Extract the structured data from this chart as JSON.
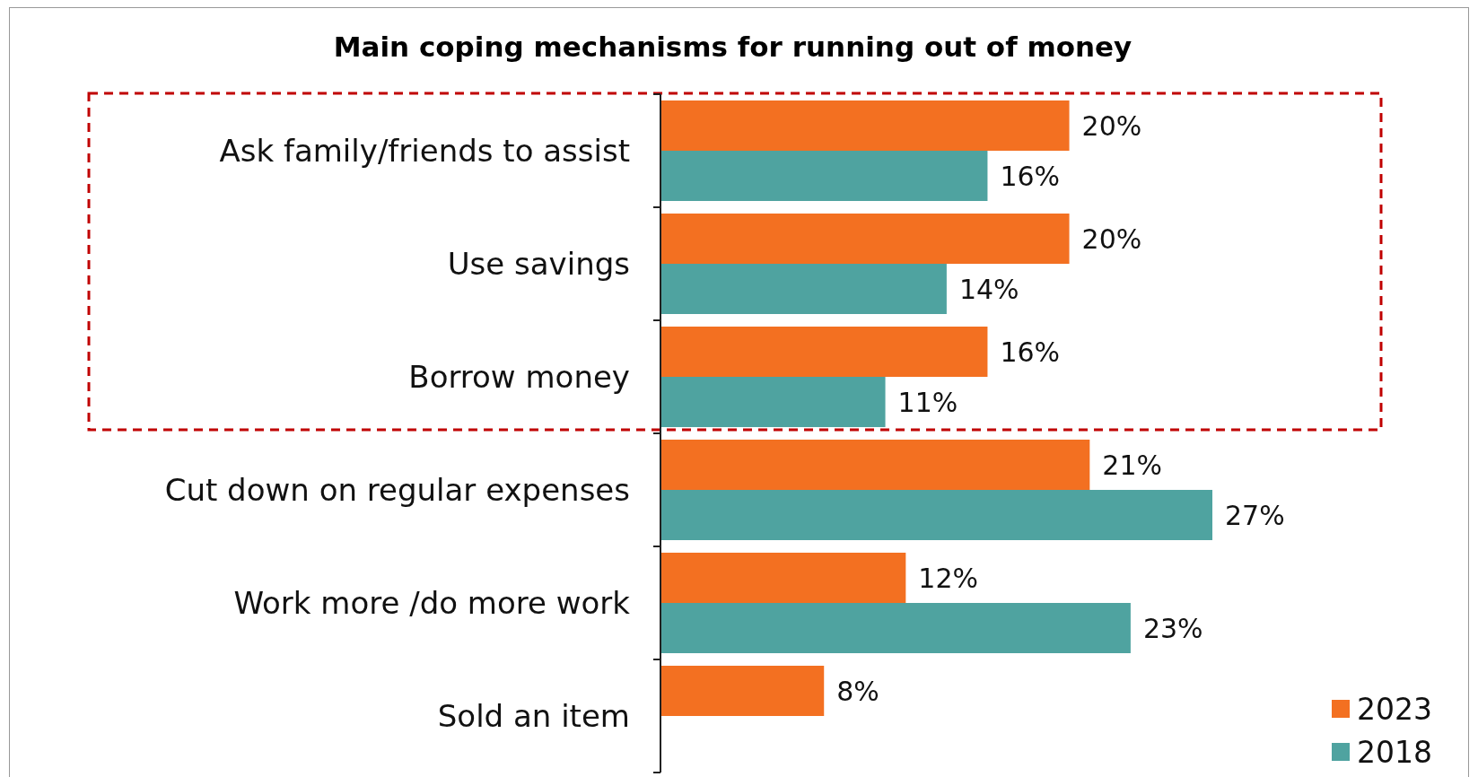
{
  "chart_data": {
    "type": "bar",
    "orientation": "horizontal",
    "title": "Main coping mechanisms for running out of money",
    "categories": [
      "Ask family/friends to assist",
      "Use savings",
      "Borrow money",
      "Cut down on regular expenses",
      "Work more /do more work",
      "Sold an item"
    ],
    "series": [
      {
        "name": "2023",
        "color": "#f37021",
        "values": [
          20,
          20,
          16,
          21,
          12,
          8
        ],
        "value_labels": [
          "20%",
          "20%",
          "16%",
          "21%",
          "12%",
          "8%"
        ]
      },
      {
        "name": "2018",
        "color": "#4fa3a0",
        "values": [
          16,
          14,
          11,
          27,
          23,
          null
        ],
        "value_labels": [
          "16%",
          "14%",
          "11%",
          "27%",
          "23%",
          null
        ]
      }
    ],
    "legend": "bottom right"
  }
}
